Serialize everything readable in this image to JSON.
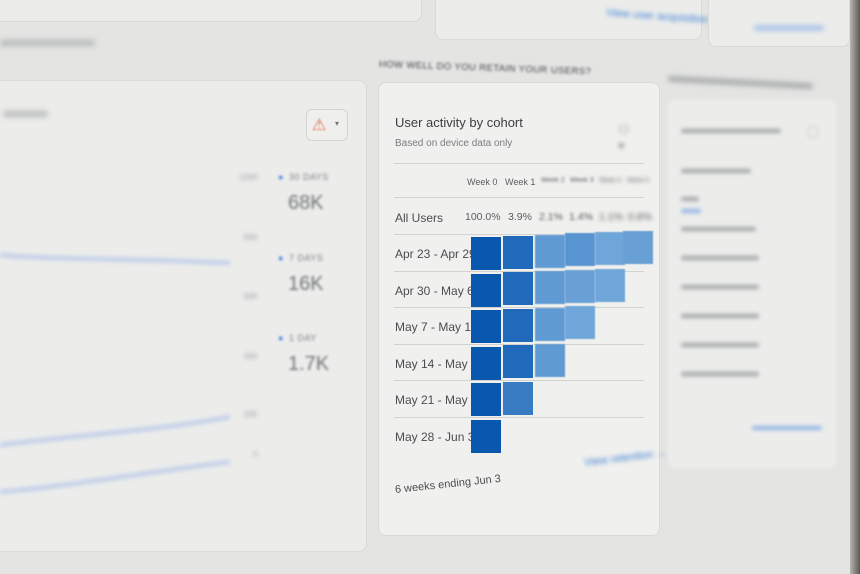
{
  "top_cards": {
    "link_user_acquisition": "View user acquisition →"
  },
  "retention_section": {
    "heading": "HOW WELL DO YOU RETAIN YOUR USERS?"
  },
  "active_users_card": {
    "alert_icon": "warning-triangle-icon",
    "y_ticks": [
      "100K",
      "80K",
      "60K",
      "40K",
      "20K",
      "0"
    ],
    "metrics": [
      {
        "label": "30 DAYS",
        "value": "68K"
      },
      {
        "label": "7 DAYS",
        "value": "16K"
      },
      {
        "label": "1 DAY",
        "value": "1.7K"
      }
    ],
    "line_color": "#b9c6e8"
  },
  "cohort_card": {
    "title": "User activity by cohort",
    "subtitle": "Based on device data only",
    "menu_icon": "compare-icon",
    "columns": [
      "Week 0",
      "Week 1",
      "Week 2",
      "Week 3",
      "Week 4",
      "Week 5"
    ],
    "all_users_label": "All Users",
    "all_users_values": [
      "100.0%",
      "3.9%",
      "2.1%",
      "1.4%",
      "1.1%",
      "0.8%"
    ],
    "rows": [
      {
        "label": "Apr 23 - Apr 29",
        "levels": [
          1.0,
          0.85,
          0.45,
          0.5,
          0.35,
          0.4
        ]
      },
      {
        "label": "Apr 30 - May 6",
        "levels": [
          1.0,
          0.85,
          0.45,
          0.4,
          0.35
        ]
      },
      {
        "label": "May 7 - May 13",
        "levels": [
          1.0,
          0.85,
          0.45,
          0.35
        ]
      },
      {
        "label": "May 14 - May 20",
        "levels": [
          1.0,
          0.85,
          0.45
        ]
      },
      {
        "label": "May 21 - May 27",
        "levels": [
          1.0,
          0.7
        ]
      },
      {
        "label": "May 28 - Jun 3",
        "levels": [
          1.0
        ]
      }
    ],
    "footer": "6 weeks ending Jun 3",
    "link_view_retention": "View retention →",
    "colors": {
      "high": "#0a57b0",
      "low": "#a6d0f0"
    }
  }
}
